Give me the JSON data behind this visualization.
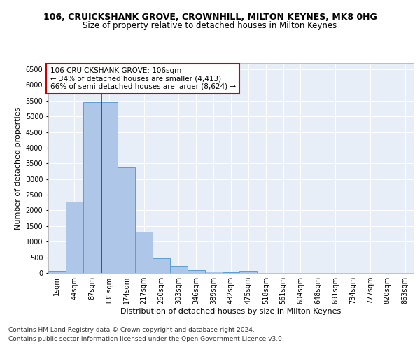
{
  "title": "106, CRUICKSHANK GROVE, CROWNHILL, MILTON KEYNES, MK8 0HG",
  "subtitle": "Size of property relative to detached houses in Milton Keynes",
  "xlabel": "Distribution of detached houses by size in Milton Keynes",
  "ylabel": "Number of detached properties",
  "bin_labels": [
    "1sqm",
    "44sqm",
    "87sqm",
    "131sqm",
    "174sqm",
    "217sqm",
    "260sqm",
    "303sqm",
    "346sqm",
    "389sqm",
    "432sqm",
    "475sqm",
    "518sqm",
    "561sqm",
    "604sqm",
    "648sqm",
    "691sqm",
    "734sqm",
    "777sqm",
    "820sqm",
    "863sqm"
  ],
  "bar_heights": [
    75,
    2280,
    5440,
    5440,
    3380,
    1310,
    470,
    215,
    100,
    50,
    20,
    75,
    0,
    0,
    0,
    0,
    0,
    0,
    0,
    0,
    0
  ],
  "bar_color": "#aec6e8",
  "bar_edge_color": "#5a9fd4",
  "vline_x": 2.56,
  "vline_color": "#cc0000",
  "annotation_text": "106 CRUICKSHANK GROVE: 106sqm\n← 34% of detached houses are smaller (4,413)\n66% of semi-detached houses are larger (8,624) →",
  "annotation_box_color": "#ffffff",
  "annotation_border_color": "#cc0000",
  "ylim": [
    0,
    6700
  ],
  "yticks": [
    0,
    500,
    1000,
    1500,
    2000,
    2500,
    3000,
    3500,
    4000,
    4500,
    5000,
    5500,
    6000,
    6500
  ],
  "footer_line1": "Contains HM Land Registry data © Crown copyright and database right 2024.",
  "footer_line2": "Contains public sector information licensed under the Open Government Licence v3.0.",
  "bg_color": "#e8eef7",
  "title_fontsize": 9,
  "subtitle_fontsize": 8.5,
  "axis_label_fontsize": 8,
  "tick_fontsize": 7,
  "annotation_fontsize": 7.5,
  "footer_fontsize": 6.5
}
